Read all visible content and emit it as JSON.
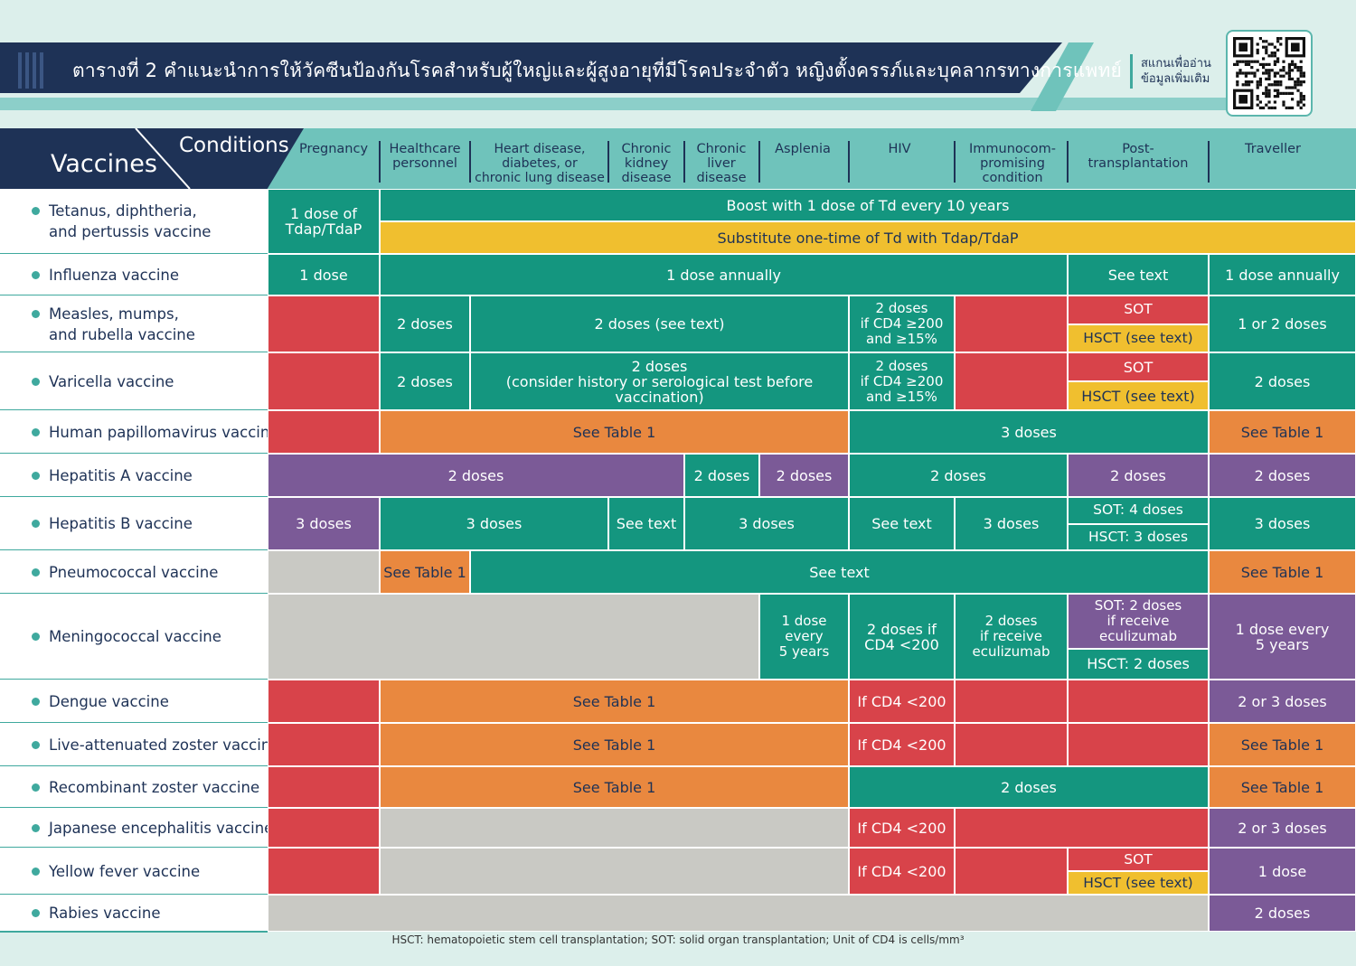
{
  "colors": {
    "navy": "#1e3256",
    "teal": "#14967f",
    "red": "#d8434a",
    "orange": "#e9883f",
    "purple": "#7b5a97",
    "yellow": "#f0bf2f",
    "gray": "#c9c9c4",
    "header_teal": "#6fc3bb"
  },
  "header": {
    "title": "ตารางที่ 2 คำแนะนำการให้วัคซีนป้องกันโรคสำหรับผู้ใหญ่และผู้สูงอายุที่มีโรคประจำตัว หญิงตั้งครรภ์และบุคลากรทางการแพทย์",
    "qr_label_line1": "สแกนเพื่ออ่าน",
    "qr_label_line2": "ข้อมูลเพิ่มเติม",
    "qr_icon": "qr-code-icon"
  },
  "table_header": {
    "vaccines_label": "Vaccines",
    "conditions_label": "Conditions",
    "columns": [
      {
        "id": "pregnancy",
        "label": "Pregnancy"
      },
      {
        "id": "healthcare",
        "label": "Healthcare\npersonnel"
      },
      {
        "id": "heart",
        "label": "Heart disease,\ndiabetes, or\nchronic lung disease"
      },
      {
        "id": "kidney",
        "label": "Chronic\nkidney\ndisease"
      },
      {
        "id": "liver",
        "label": "Chronic\nliver\ndisease"
      },
      {
        "id": "asplenia",
        "label": "Asplenia"
      },
      {
        "id": "hiv",
        "label": "HIV"
      },
      {
        "id": "immuno",
        "label": "Immunocom-\npromising\ncondition"
      },
      {
        "id": "posttx",
        "label": "Post-\ntransplantation"
      },
      {
        "id": "traveller",
        "label": "Traveller"
      }
    ]
  },
  "rows": [
    {
      "id": "tdap",
      "name": "Tetanus, diphtheria,\nand pertussis vaccine",
      "cells": [
        {
          "text": "1 dose of\nTdap/TdaP",
          "color": "teal"
        },
        {
          "text": "Boost with 1 dose of Td every 10 years",
          "color": "teal"
        },
        {
          "text": "Substitute one-time of Td with Tdap/TdaP",
          "color": "yellow"
        }
      ]
    },
    {
      "id": "influenza",
      "name": "Influenza vaccine",
      "cells": [
        {
          "text": "1 dose",
          "color": "teal"
        },
        {
          "text": "1 dose annually",
          "color": "teal"
        },
        {
          "text": "See text",
          "color": "teal"
        },
        {
          "text": "1 dose annually",
          "color": "teal"
        }
      ]
    },
    {
      "id": "mmr",
      "name": "Measles, mumps,\nand rubella vaccine",
      "cells": [
        {
          "text": "",
          "color": "red"
        },
        {
          "text": "2 doses",
          "color": "teal"
        },
        {
          "text": "2 doses (see text)",
          "color": "teal"
        },
        {
          "text": "2 doses\nif CD4 ≥200\nand ≥15%",
          "color": "teal"
        },
        {
          "text": "",
          "color": "red"
        },
        {
          "text": "SOT",
          "color": "red"
        },
        {
          "text": "HSCT (see text)",
          "color": "yellow"
        },
        {
          "text": "1 or 2 doses",
          "color": "teal"
        }
      ]
    },
    {
      "id": "varicella",
      "name": "Varicella vaccine",
      "cells": [
        {
          "text": "",
          "color": "red"
        },
        {
          "text": "2 doses",
          "color": "teal"
        },
        {
          "text": "2 doses\n(consider history or serological test before vaccination)",
          "color": "teal"
        },
        {
          "text": "2 doses\nif CD4 ≥200\nand ≥15%",
          "color": "teal"
        },
        {
          "text": "",
          "color": "red"
        },
        {
          "text": "SOT",
          "color": "red"
        },
        {
          "text": "HSCT (see text)",
          "color": "yellow"
        },
        {
          "text": "2 doses",
          "color": "teal"
        }
      ]
    },
    {
      "id": "hpv",
      "name": "Human papillomavirus vaccine",
      "cells": [
        {
          "text": "",
          "color": "red"
        },
        {
          "text": "See Table 1",
          "color": "orange"
        },
        {
          "text": "3 doses",
          "color": "teal"
        },
        {
          "text": "See Table 1",
          "color": "orange"
        }
      ]
    },
    {
      "id": "hepa",
      "name": "Hepatitis A vaccine",
      "cells": [
        {
          "text": "2 doses",
          "color": "purple"
        },
        {
          "text": "2 doses",
          "color": "teal"
        },
        {
          "text": "2 doses",
          "color": "purple"
        },
        {
          "text": "2 doses",
          "color": "teal"
        },
        {
          "text": "2 doses",
          "color": "purple"
        },
        {
          "text": "2 doses",
          "color": "purple"
        }
      ]
    },
    {
      "id": "hepb",
      "name": "Hepatitis B vaccine",
      "cells": [
        {
          "text": "3 doses",
          "color": "purple"
        },
        {
          "text": "3 doses",
          "color": "teal"
        },
        {
          "text": "See text",
          "color": "teal"
        },
        {
          "text": "3 doses",
          "color": "teal"
        },
        {
          "text": "See text",
          "color": "teal"
        },
        {
          "text": "3 doses",
          "color": "teal"
        },
        {
          "text": "SOT: 4 doses",
          "color": "teal"
        },
        {
          "text": "HSCT: 3 doses",
          "color": "teal"
        },
        {
          "text": "3 doses",
          "color": "teal"
        }
      ]
    },
    {
      "id": "pneumo",
      "name": "Pneumococcal vaccine",
      "cells": [
        {
          "text": "",
          "color": "gray"
        },
        {
          "text": "See Table 1",
          "color": "orange"
        },
        {
          "text": "See text",
          "color": "teal"
        },
        {
          "text": "See Table 1",
          "color": "orange"
        }
      ]
    },
    {
      "id": "mening",
      "name": "Meningococcal vaccine",
      "cells": [
        {
          "text": "",
          "color": "gray"
        },
        {
          "text": "1 dose\nevery\n5 years",
          "color": "teal"
        },
        {
          "text": "2 doses if\nCD4 <200",
          "color": "teal"
        },
        {
          "text": "2 doses\nif receive\neculizumab",
          "color": "teal"
        },
        {
          "text": "SOT: 2 doses\nif receive\neculizumab",
          "color": "purple"
        },
        {
          "text": "HSCT: 2 doses",
          "color": "teal"
        },
        {
          "text": "1 dose every\n5 years",
          "color": "purple"
        }
      ]
    },
    {
      "id": "dengue",
      "name": "Dengue vaccine",
      "cells": [
        {
          "text": "",
          "color": "red"
        },
        {
          "text": "See Table 1",
          "color": "orange"
        },
        {
          "text": "If CD4 <200",
          "color": "red"
        },
        {
          "text": "",
          "color": "red"
        },
        {
          "text": "",
          "color": "red"
        },
        {
          "text": "2 or 3 doses",
          "color": "purple"
        }
      ]
    },
    {
      "id": "zoster-live",
      "name": "Live-attenuated zoster vaccine",
      "cells": [
        {
          "text": "",
          "color": "red"
        },
        {
          "text": "See Table 1",
          "color": "orange"
        },
        {
          "text": "If CD4 <200",
          "color": "red"
        },
        {
          "text": "",
          "color": "red"
        },
        {
          "text": "",
          "color": "red"
        },
        {
          "text": "See Table 1",
          "color": "orange"
        }
      ]
    },
    {
      "id": "zoster-rec",
      "name": "Recombinant zoster vaccine",
      "cells": [
        {
          "text": "",
          "color": "red"
        },
        {
          "text": "See Table 1",
          "color": "orange"
        },
        {
          "text": "2 doses",
          "color": "teal"
        },
        {
          "text": "See Table 1",
          "color": "orange"
        }
      ]
    },
    {
      "id": "je",
      "name": "Japanese encephalitis vaccine",
      "cells": [
        {
          "text": "",
          "color": "red"
        },
        {
          "text": "",
          "color": "gray"
        },
        {
          "text": "If CD4 <200",
          "color": "red"
        },
        {
          "text": "",
          "color": "red"
        },
        {
          "text": "2 or 3 doses",
          "color": "purple"
        }
      ]
    },
    {
      "id": "yf",
      "name": "Yellow fever vaccine",
      "cells": [
        {
          "text": "",
          "color": "red"
        },
        {
          "text": "",
          "color": "gray"
        },
        {
          "text": "If CD4 <200",
          "color": "red"
        },
        {
          "text": "",
          "color": "red"
        },
        {
          "text": "SOT",
          "color": "red"
        },
        {
          "text": "HSCT (see text)",
          "color": "yellow"
        },
        {
          "text": "1 dose",
          "color": "purple"
        }
      ]
    },
    {
      "id": "rabies",
      "name": "Rabies vaccine",
      "cells": [
        {
          "text": "",
          "color": "gray"
        },
        {
          "text": "2 doses",
          "color": "purple"
        }
      ]
    }
  ],
  "footnote": "HSCT: hematopoietic stem cell transplantation; SOT: solid organ transplantation; Unit of CD4 is cells/mm³"
}
